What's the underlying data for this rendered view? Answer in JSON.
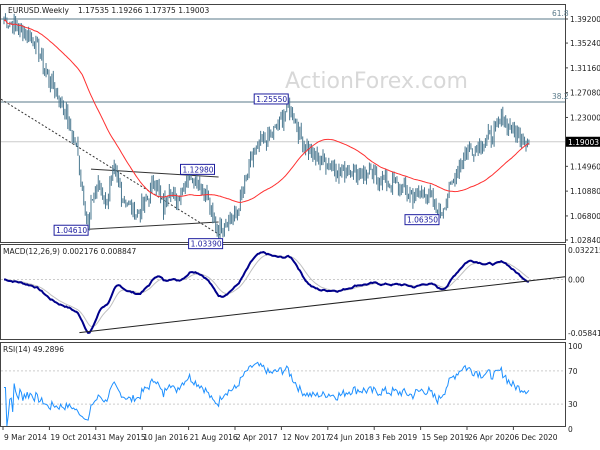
{
  "header": {
    "symbol": "EURUSD.Weekly",
    "ohlc": "1.17535 1.19266 1.17375 1.19003"
  },
  "watermark": "ActionForex.com",
  "chart_data": {
    "type": "candlestick-bar",
    "price_axis": {
      "ticks": [
        "1.39200",
        "1.35240",
        "1.31160",
        "1.27080",
        "1.23000",
        "1.19003",
        "1.14960",
        "1.10880",
        "1.06800",
        "1.02840"
      ],
      "range": [
        1.0284,
        1.392
      ],
      "current": "1.19003",
      "current_value": 1.19003
    },
    "x_ticks": [
      "9 Mar 2014",
      "19 Oct 2014",
      "31 May 2015",
      "10 Jan 2016",
      "21 Aug 2016",
      "2 Apr 2017",
      "12 Nov 2017",
      "24 Jun 2018",
      "3 Feb 2019",
      "15 Sep 2019",
      "26 Apr 2020",
      "6 Dec 2020"
    ],
    "fib_levels": [
      {
        "label": "61.8",
        "price": 1.392
      },
      {
        "label": "38.2",
        "price": 1.2555
      }
    ],
    "annotations": [
      {
        "label": "1.04610",
        "week": 58,
        "price": 1.0461
      },
      {
        "label": "1.12980",
        "week": 130,
        "price": 1.1298
      },
      {
        "label": "1.03390",
        "week": 148,
        "price": 1.0339
      },
      {
        "label": "1.25550",
        "week": 196,
        "price": 1.2555
      },
      {
        "label": "1.06350",
        "week": 300,
        "price": 1.0635
      }
    ],
    "price_keypoints": [
      [
        0,
        1.39
      ],
      [
        8,
        1.38
      ],
      [
        20,
        1.36
      ],
      [
        30,
        1.3
      ],
      [
        42,
        1.24
      ],
      [
        50,
        1.18
      ],
      [
        53,
        1.13
      ],
      [
        56,
        1.08
      ],
      [
        58,
        1.05
      ],
      [
        61,
        1.1
      ],
      [
        66,
        1.12
      ],
      [
        70,
        1.09
      ],
      [
        76,
        1.14
      ],
      [
        82,
        1.1
      ],
      [
        88,
        1.08
      ],
      [
        92,
        1.07
      ],
      [
        100,
        1.1
      ],
      [
        104,
        1.13
      ],
      [
        110,
        1.08
      ],
      [
        114,
        1.12
      ],
      [
        118,
        1.09
      ],
      [
        122,
        1.11
      ],
      [
        128,
        1.14
      ],
      [
        132,
        1.13
      ],
      [
        136,
        1.12
      ],
      [
        140,
        1.1
      ],
      [
        144,
        1.06
      ],
      [
        148,
        1.04
      ],
      [
        152,
        1.06
      ],
      [
        160,
        1.07
      ],
      [
        166,
        1.12
      ],
      [
        172,
        1.17
      ],
      [
        178,
        1.19
      ],
      [
        184,
        1.2
      ],
      [
        190,
        1.22
      ],
      [
        196,
        1.25
      ],
      [
        200,
        1.23
      ],
      [
        206,
        1.19
      ],
      [
        212,
        1.17
      ],
      [
        218,
        1.16
      ],
      [
        224,
        1.155
      ],
      [
        232,
        1.14
      ],
      [
        240,
        1.145
      ],
      [
        252,
        1.135
      ],
      [
        264,
        1.125
      ],
      [
        274,
        1.115
      ],
      [
        282,
        1.1
      ],
      [
        290,
        1.11
      ],
      [
        296,
        1.09
      ],
      [
        300,
        1.07
      ],
      [
        304,
        1.09
      ],
      [
        312,
        1.14
      ],
      [
        318,
        1.175
      ],
      [
        324,
        1.18
      ],
      [
        330,
        1.19
      ],
      [
        336,
        1.2
      ],
      [
        344,
        1.23
      ],
      [
        350,
        1.21
      ],
      [
        356,
        1.2
      ],
      [
        362,
        1.19
      ]
    ],
    "moving_average": {
      "color": "#ff3030"
    },
    "macd": {
      "label": "MACD(12,26,9) 0.002176 0.008847",
      "ticks": [
        "0.032215",
        "0.00",
        "-0.058413"
      ],
      "range": [
        -0.058413,
        0.032215
      ],
      "main_color": "#00008b",
      "signal_color": "#c0c0c0"
    },
    "rsi": {
      "label": "RSI(14) 49.2896",
      "ticks": [
        "100",
        "70",
        "30",
        "0"
      ],
      "levels": [
        70,
        30
      ],
      "color": "#1e90ff"
    },
    "bar_color": "#4a7890"
  }
}
